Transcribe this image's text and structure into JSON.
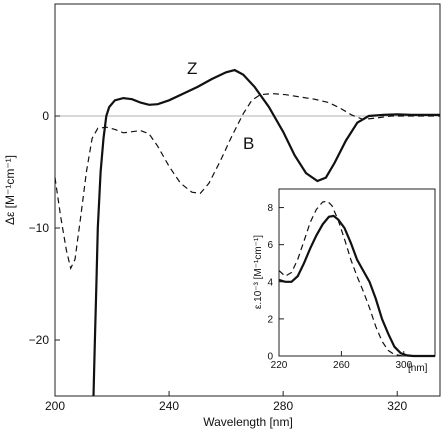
{
  "chart_data": [
    {
      "type": "line",
      "xlabel": "Wavelength [nm]",
      "ylabel": "Δε [M⁻¹cm⁻¹]",
      "xlim": [
        200,
        335
      ],
      "ylim": [
        -25,
        10
      ],
      "x_ticks": [
        200,
        240,
        280,
        320
      ],
      "y_ticks": [
        0,
        -10,
        -20
      ],
      "zero_line": true,
      "series": [
        {
          "name": "Z",
          "style": "solid",
          "points": [
            [
              213.5,
              -25
            ],
            [
              214,
              -20
            ],
            [
              214.5,
              -15
            ],
            [
              215,
              -10
            ],
            [
              216,
              -5
            ],
            [
              217,
              -2
            ],
            [
              218,
              0
            ],
            [
              219,
              0.8
            ],
            [
              221,
              1.4
            ],
            [
              224,
              1.6
            ],
            [
              227,
              1.5
            ],
            [
              230,
              1.2
            ],
            [
              233,
              1.0
            ],
            [
              236,
              1.05
            ],
            [
              240,
              1.4
            ],
            [
              245,
              2.0
            ],
            [
              250,
              2.6
            ],
            [
              255,
              3.3
            ],
            [
              260,
              3.9
            ],
            [
              263,
              4.1
            ],
            [
              266,
              3.7
            ],
            [
              270,
              2.6
            ],
            [
              275,
              0.8
            ],
            [
              280,
              -1.4
            ],
            [
              284,
              -3.5
            ],
            [
              288,
              -5.1
            ],
            [
              292,
              -5.8
            ],
            [
              295,
              -5.5
            ],
            [
              298,
              -4.2
            ],
            [
              302,
              -2.2
            ],
            [
              306,
              -0.6
            ],
            [
              310,
              0.0
            ],
            [
              315,
              0.1
            ],
            [
              320,
              0.15
            ],
            [
              325,
              0.1
            ],
            [
              335,
              0.1
            ]
          ]
        },
        {
          "name": "B",
          "style": "dashed",
          "points": [
            [
              200,
              -5.5
            ],
            [
              202,
              -9
            ],
            [
              204,
              -12
            ],
            [
              205.5,
              -13.6
            ],
            [
              207,
              -12.8
            ],
            [
              209,
              -9
            ],
            [
              211,
              -5
            ],
            [
              213,
              -2
            ],
            [
              215,
              -1.1
            ],
            [
              218,
              -1.0
            ],
            [
              221,
              -1.2
            ],
            [
              224,
              -1.5
            ],
            [
              227,
              -1.4
            ],
            [
              230,
              -1.3
            ],
            [
              233,
              -1.6
            ],
            [
              236,
              -2.7
            ],
            [
              240,
              -4.5
            ],
            [
              244,
              -6.0
            ],
            [
              248,
              -6.8
            ],
            [
              251,
              -6.9
            ],
            [
              254,
              -6.0
            ],
            [
              258,
              -4.0
            ],
            [
              262,
              -1.8
            ],
            [
              266,
              0.2
            ],
            [
              269,
              1.4
            ],
            [
              272,
              1.9
            ],
            [
              276,
              2.0
            ],
            [
              281,
              1.9
            ],
            [
              286,
              1.7
            ],
            [
              291,
              1.5
            ],
            [
              296,
              1.2
            ],
            [
              300,
              0.7
            ],
            [
              304,
              0.1
            ],
            [
              308,
              -0.3
            ],
            [
              312,
              -0.2
            ],
            [
              318,
              0.0
            ],
            [
              335,
              0.0
            ]
          ]
        }
      ],
      "annotations": [
        "Z",
        "B"
      ]
    },
    {
      "type": "line",
      "xlabel": "[nm]",
      "ylabel": "ε.10⁻³ [M⁻¹cm⁻¹]",
      "xlim": [
        220,
        320
      ],
      "ylim": [
        0,
        9
      ],
      "x_ticks": [
        220,
        260,
        300
      ],
      "y_ticks": [
        0,
        2,
        4,
        6,
        8
      ],
      "series": [
        {
          "name": "Z",
          "style": "solid",
          "points": [
            [
              220,
              4.1
            ],
            [
              224,
              4.0
            ],
            [
              228,
              4.0
            ],
            [
              232,
              4.3
            ],
            [
              236,
              5.0
            ],
            [
              240,
              5.8
            ],
            [
              244,
              6.5
            ],
            [
              248,
              7.1
            ],
            [
              252,
              7.5
            ],
            [
              255,
              7.55
            ],
            [
              258,
              7.35
            ],
            [
              262,
              6.9
            ],
            [
              266,
              6.1
            ],
            [
              270,
              5.2
            ],
            [
              274,
              4.6
            ],
            [
              278,
              4.0
            ],
            [
              282,
              3.1
            ],
            [
              286,
              2.0
            ],
            [
              290,
              1.2
            ],
            [
              294,
              0.5
            ],
            [
              298,
              0.15
            ],
            [
              302,
              0.03
            ],
            [
              306,
              0.0
            ],
            [
              320,
              0.0
            ]
          ]
        },
        {
          "name": "B",
          "style": "dashed",
          "points": [
            [
              220,
              4.6
            ],
            [
              224,
              4.3
            ],
            [
              228,
              4.5
            ],
            [
              232,
              5.2
            ],
            [
              236,
              6.2
            ],
            [
              240,
              7.2
            ],
            [
              244,
              7.9
            ],
            [
              248,
              8.3
            ],
            [
              251,
              8.35
            ],
            [
              254,
              8.1
            ],
            [
              258,
              7.3
            ],
            [
              262,
              6.3
            ],
            [
              266,
              5.2
            ],
            [
              270,
              4.3
            ],
            [
              274,
              3.5
            ],
            [
              278,
              2.6
            ],
            [
              282,
              1.6
            ],
            [
              286,
              0.8
            ],
            [
              290,
              0.3
            ],
            [
              294,
              0.08
            ],
            [
              298,
              0.02
            ],
            [
              302,
              0.0
            ],
            [
              320,
              0.0
            ]
          ]
        }
      ]
    }
  ]
}
